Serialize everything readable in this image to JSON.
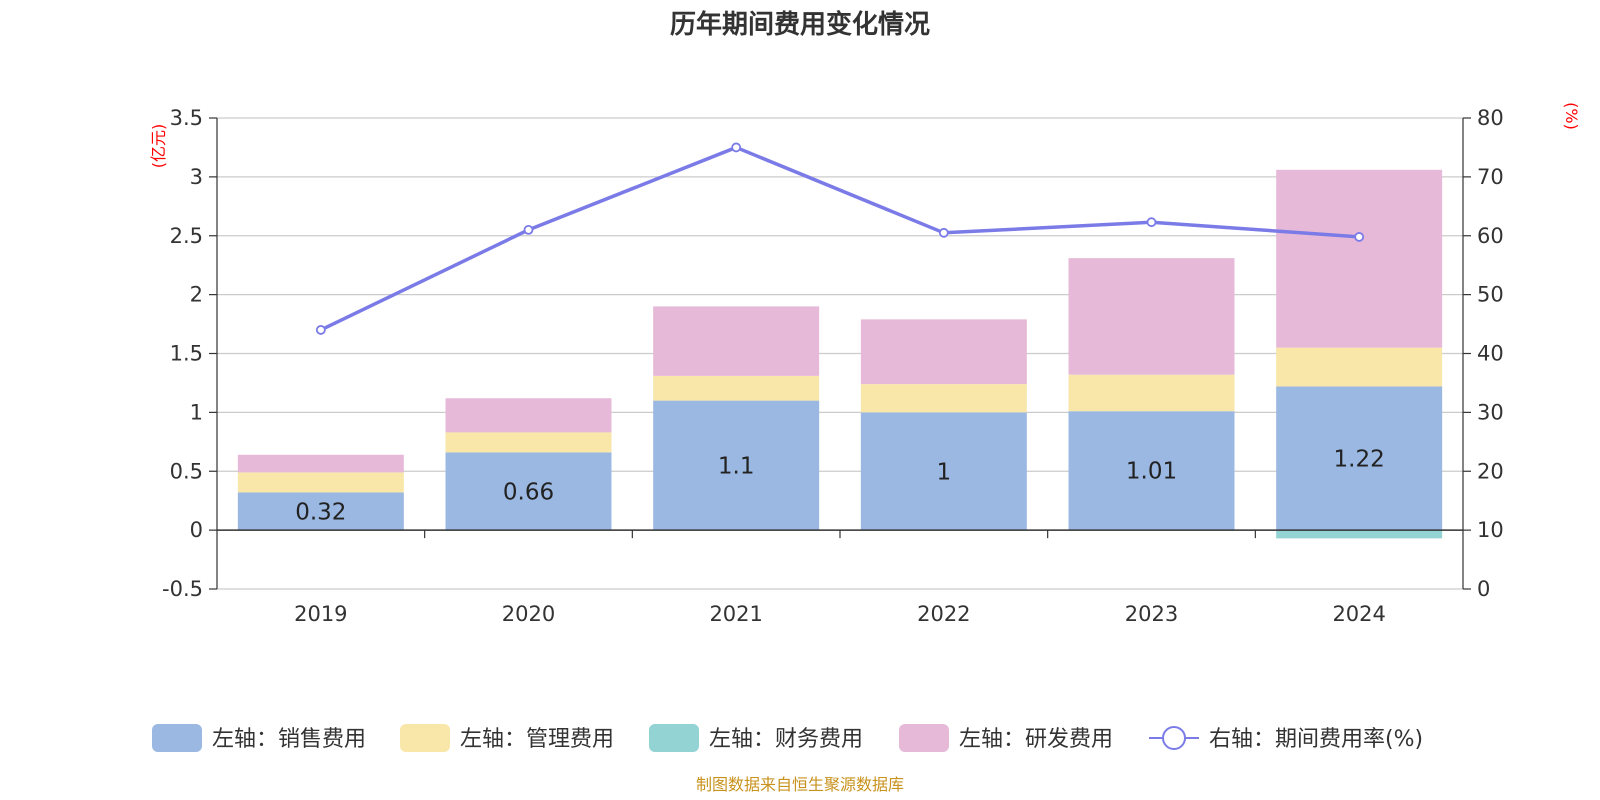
{
  "chart_data": {
    "type": "bar",
    "title": "历年期间费用变化情况",
    "categories": [
      "2019",
      "2020",
      "2021",
      "2022",
      "2023",
      "2024"
    ],
    "left_axis": {
      "unit": "(亿元)",
      "ylim": [
        -0.5,
        3.5
      ],
      "ticks": [
        3.5,
        3,
        2.5,
        2,
        1.5,
        1,
        0.5,
        0,
        -0.5
      ]
    },
    "right_axis": {
      "unit": "(%)",
      "ylim": [
        0,
        80
      ],
      "ticks": [
        80,
        70,
        60,
        50,
        40,
        30,
        20,
        10,
        0
      ]
    },
    "series": [
      {
        "name": "左轴：销售费用",
        "type": "bar",
        "stacked": true,
        "color": "#9bb8e2",
        "values": [
          0.32,
          0.66,
          1.1,
          1.0,
          1.01,
          1.22
        ],
        "labels": [
          "0.32",
          "0.66",
          "1.1",
          "1",
          "1.01",
          "1.22"
        ]
      },
      {
        "name": "左轴：管理费用",
        "type": "bar",
        "stacked": true,
        "color": "#f8e7a8",
        "values": [
          0.17,
          0.17,
          0.21,
          0.24,
          0.31,
          0.33
        ]
      },
      {
        "name": "左轴：财务费用",
        "type": "bar",
        "stacked": true,
        "color": "#94d3d3",
        "values": [
          0.0,
          0.0,
          0.0,
          0.0,
          0.0,
          -0.07
        ]
      },
      {
        "name": "左轴：研发费用",
        "type": "bar",
        "stacked": true,
        "color": "#e7b9d8",
        "values": [
          0.15,
          0.29,
          0.59,
          0.55,
          0.99,
          1.51
        ]
      },
      {
        "name": "右轴：期间费用率(%)",
        "type": "line",
        "axis": "right",
        "color": "#7b7be8",
        "values": [
          44,
          61,
          75,
          60.5,
          62.3,
          59.8
        ]
      }
    ],
    "grid": true,
    "legend_position": "bottom"
  },
  "footer": {
    "source": "制图数据来自恒生聚源数据库"
  }
}
